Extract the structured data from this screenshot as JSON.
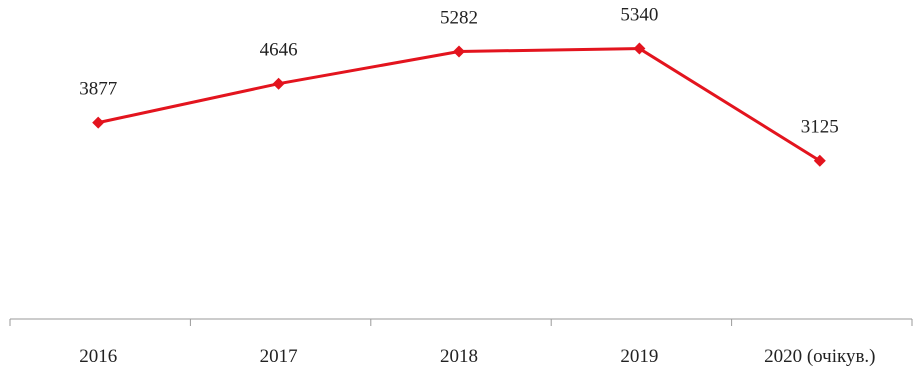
{
  "chart_data": {
    "type": "line",
    "title": "",
    "xlabel": "",
    "ylabel": "",
    "categories": [
      "2016",
      "2017",
      "2018",
      "2019",
      "2020 (очікув.)"
    ],
    "series": [
      {
        "values": [
          3877,
          4646,
          5282,
          5340,
          3125
        ],
        "color": "#e3141e"
      }
    ],
    "data_labels": [
      "3877",
      "4646",
      "5282",
      "5340",
      "3125"
    ],
    "ylim": [
      0,
      6200
    ],
    "grid": false,
    "legend": "none",
    "marker": "diamond"
  }
}
